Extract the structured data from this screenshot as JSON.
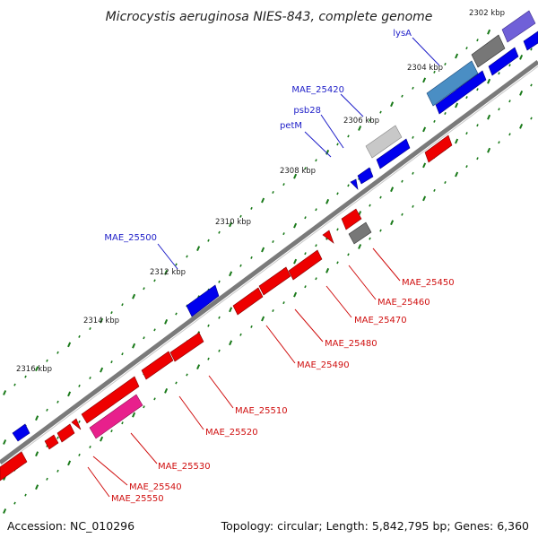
{
  "title": "Microcystis aeruginosa NIES-843, complete genome",
  "footer": {
    "accession": "Accession: NC_010296",
    "topology": "Topology: circular; Length: 5,842,795 bp; Genes: 6,360"
  },
  "colors": {
    "backbone": "#777777",
    "tick": "#1a7a1a",
    "forward_gene": "#0000ee",
    "reverse_gene": "#ee0000",
    "forward_label": "#1e1ec8",
    "reverse_label": "#d01010",
    "pseudo_gray": "#777777",
    "pseudo_light": "#c8c8c8",
    "pseudo_blue": "#4a8ec4",
    "pseudo_purple": "#7060d8",
    "pseudo_pink": "#e8208c"
  },
  "ticks": [
    "2302 kbp",
    "2304 kbp",
    "2306 kbp",
    "2308 kbp",
    "2310 kbp",
    "2312 kbp",
    "2314 kbp",
    "2316 kbp"
  ],
  "forward_labels": [
    "lysA",
    "MAE_25420",
    "psb28",
    "petM",
    "MAE_25500"
  ],
  "reverse_labels": [
    "MAE_25450",
    "MAE_25460",
    "MAE_25470",
    "MAE_25480",
    "MAE_25490",
    "MAE_25510",
    "MAE_25520",
    "MAE_25530",
    "MAE_25540",
    "MAE_25550"
  ]
}
